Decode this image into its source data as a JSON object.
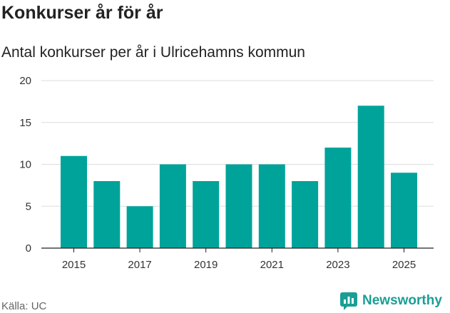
{
  "title": "Konkurser år för år",
  "subtitle": "Antal konkurser per år i Ulricehamns kommun",
  "source": "Källa: UC",
  "brand": {
    "name": "Newsworthy",
    "icon": "newsworthy-logo-icon",
    "color": "#1a9e95"
  },
  "colors": {
    "bar": "#00a39a",
    "grid": "#dddddd",
    "axis": "#222222"
  },
  "chart_data": {
    "type": "bar",
    "categories": [
      "2015",
      "2016",
      "2017",
      "2018",
      "2019",
      "2020",
      "2021",
      "2022",
      "2023",
      "2024",
      "2025"
    ],
    "values": [
      11,
      8,
      5,
      10,
      8,
      10,
      10,
      8,
      12,
      17,
      9
    ],
    "x_tick_labels": [
      "2015",
      "2017",
      "2019",
      "2021",
      "2023",
      "2025"
    ],
    "y_ticks": [
      0,
      5,
      10,
      15,
      20
    ],
    "ylim": [
      0,
      20
    ],
    "title": "Konkurser år för år",
    "subtitle": "Antal konkurser per år i Ulricehamns kommun",
    "grid": true
  }
}
